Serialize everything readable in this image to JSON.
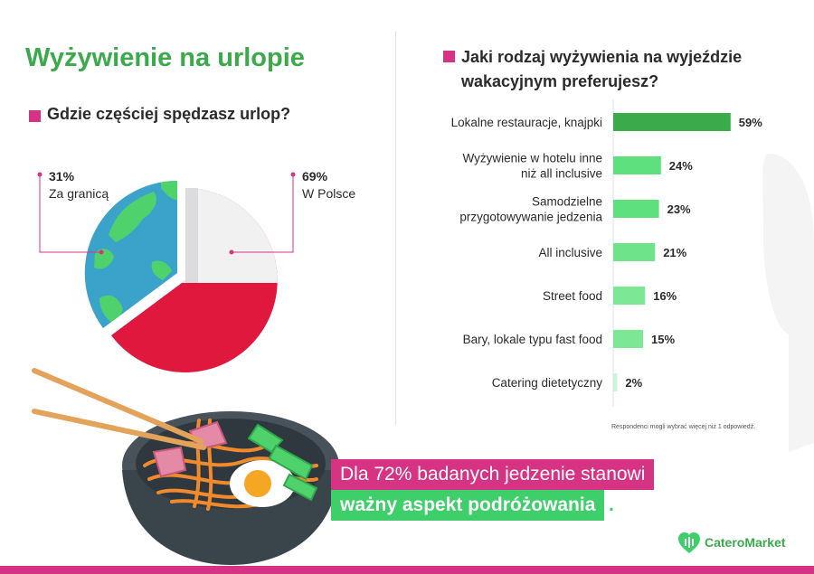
{
  "title": "Wyżywienie na urlopie",
  "left_question": "Gdzie częściej spędzasz urlop?",
  "right_question": "Jaki rodzaj wyżywienia na wyjeździe wakacyjnym preferujesz?",
  "footnote": "Respondenci mogli wybrać więcej niż 1 odpowiedź.",
  "headline_line1": "Dla 72% badanych jedzenie stanowi",
  "headline_line2": "ważny aspekt podróżowania",
  "headline_dot": ".",
  "brand": "CateroMarket",
  "colors": {
    "accent_pink": "#d63384",
    "title_green": "#3aaa4a",
    "poland_white": "#f1f1f2",
    "poland_red": "#e0183e",
    "globe_ocean": "#3ba3c9",
    "globe_land": "#4fd26c",
    "bar_green_dark": "#3aaa4a",
    "bar_green_light": "#5fe07f"
  },
  "chart_data": [
    {
      "type": "pie",
      "title": "Gdzie częściej spędzasz urlop?",
      "slices": [
        {
          "label": "W Polsce",
          "value": 69,
          "value_label": "69%"
        },
        {
          "label": "Za granicą",
          "value": 31,
          "value_label": "31%"
        }
      ]
    },
    {
      "type": "bar",
      "orientation": "horizontal",
      "title": "Jaki rodzaj wyżywienia na wyjeździe wakacyjnym preferujesz?",
      "categories": [
        [
          "Lokalne restauracje, knajpki"
        ],
        [
          "Wyżywienie w hotelu inne",
          "niż all inclusive"
        ],
        [
          "Samodzielne",
          "przygotowywanie jedzenia"
        ],
        [
          "All inclusive"
        ],
        [
          "Street food"
        ],
        [
          "Bary, lokale typu fast food"
        ],
        [
          "Catering dietetyczny"
        ]
      ],
      "values": [
        59,
        24,
        23,
        21,
        16,
        15,
        2
      ],
      "value_labels": [
        "59%",
        "24%",
        "23%",
        "21%",
        "16%",
        "15%",
        "2%"
      ],
      "unit": "%"
    }
  ]
}
